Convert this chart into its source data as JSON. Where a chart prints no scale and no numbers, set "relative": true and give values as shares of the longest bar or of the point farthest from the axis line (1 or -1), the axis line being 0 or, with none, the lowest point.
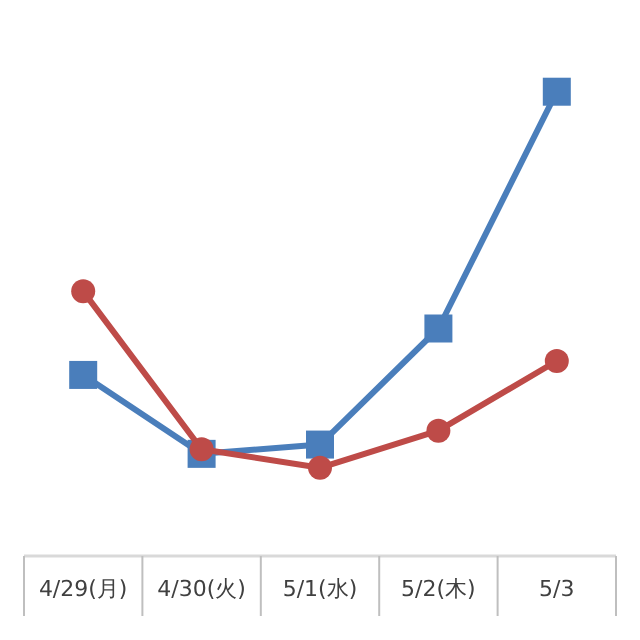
{
  "chart_data": {
    "type": "line",
    "relative": true,
    "categories": [
      "4/29(月)",
      "4/30(火)",
      "5/1(水)",
      "5/2(木)",
      "5/3"
    ],
    "series": [
      {
        "color": "#4a7ebb",
        "values": [
          0.39,
          0.22,
          0.24,
          0.49,
          1
        ],
        "marker": "square"
      },
      {
        "color": "#be4b48",
        "values": [
          0.57,
          0.23,
          0.19,
          0.27,
          0.42
        ],
        "marker": "circle"
      }
    ],
    "line_style": "solid"
  }
}
